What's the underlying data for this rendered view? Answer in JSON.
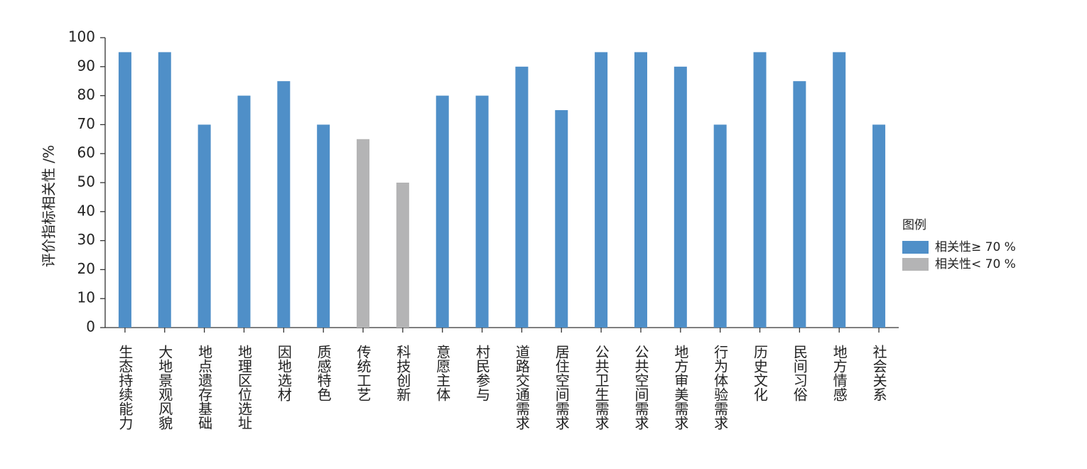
{
  "chart_data": {
    "type": "bar",
    "y_label": "评价指标相关性 /%",
    "categories": [
      "生态持续能力",
      "大地景观风貌",
      "地点遗存基础",
      "地理区位选址",
      "因地选材",
      "质感特色",
      "传统工艺",
      "科技创新",
      "意愿主体",
      "村民参与",
      "道路交通需求",
      "居住空间需求",
      "公共卫生需求",
      "公共空间需求",
      "地方审美需求",
      "行为体验需求",
      "历史文化",
      "民间习俗",
      "地方情感",
      "社会关系"
    ],
    "series": [
      {
        "name": "相关性≥ 70 %",
        "color": "#4f8fc8",
        "values": [
          95,
          95,
          70,
          80,
          85,
          70,
          null,
          null,
          80,
          80,
          90,
          75,
          95,
          95,
          90,
          70,
          95,
          85,
          95,
          70
        ]
      },
      {
        "name": "相关性< 70 %",
        "color": "#b4b4b5",
        "values": [
          null,
          null,
          null,
          null,
          null,
          null,
          65,
          50,
          null,
          null,
          null,
          null,
          null,
          null,
          null,
          null,
          null,
          null,
          null,
          null
        ]
      }
    ],
    "legend_title": "图例",
    "ylim": [
      0,
      100
    ],
    "yticks": [
      0,
      10,
      20,
      30,
      40,
      50,
      60,
      70,
      80,
      90,
      100
    ]
  }
}
